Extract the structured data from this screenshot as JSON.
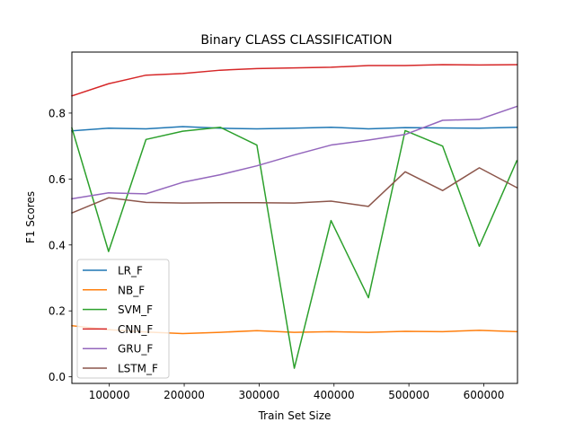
{
  "chart_data": {
    "type": "line",
    "title": "Binary CLASS CLASSIFICATION",
    "xlabel": "Train Set Size",
    "ylabel": "F1 Scores",
    "xlim": [
      50000,
      645000
    ],
    "ylim": [
      -0.02,
      0.985
    ],
    "x_ticks": [
      100000,
      200000,
      300000,
      400000,
      500000,
      600000
    ],
    "y_ticks": [
      0.0,
      0.2,
      0.4,
      0.6,
      0.8
    ],
    "x_tick_labels": [
      "100000",
      "200000",
      "300000",
      "400000",
      "500000",
      "600000"
    ],
    "y_tick_labels": [
      "0.0",
      "0.2",
      "0.4",
      "0.6",
      "0.8"
    ],
    "grid": false,
    "legend_position": "lower-left",
    "x": [
      50000,
      99000,
      149000,
      198000,
      248000,
      297000,
      347000,
      396000,
      446000,
      495000,
      545000,
      594000,
      644000
    ],
    "series": [
      {
        "name": "LR_F",
        "color": "#1f77b4",
        "values": [
          0.746,
          0.754,
          0.752,
          0.759,
          0.754,
          0.752,
          0.754,
          0.757,
          0.752,
          0.756,
          0.755,
          0.754,
          0.757
        ]
      },
      {
        "name": "NB_F",
        "color": "#ff7f0e",
        "values": [
          0.155,
          0.143,
          0.136,
          0.131,
          0.135,
          0.14,
          0.135,
          0.137,
          0.135,
          0.138,
          0.137,
          0.141,
          0.137
        ]
      },
      {
        "name": "SVM_F",
        "color": "#2ca02c",
        "values": [
          0.755,
          0.38,
          0.72,
          0.745,
          0.757,
          0.703,
          0.026,
          0.474,
          0.24,
          0.747,
          0.7,
          0.396,
          0.655
        ]
      },
      {
        "name": "CNN_F",
        "color": "#d62728",
        "values": [
          0.852,
          0.889,
          0.915,
          0.92,
          0.93,
          0.935,
          0.937,
          0.939,
          0.944,
          0.944,
          0.947,
          0.946,
          0.947
        ]
      },
      {
        "name": "GRU_F",
        "color": "#9467bd",
        "values": [
          0.54,
          0.558,
          0.555,
          0.59,
          0.613,
          0.64,
          0.673,
          0.703,
          0.718,
          0.735,
          0.778,
          0.781,
          0.82
        ]
      },
      {
        "name": "LSTM_F",
        "color": "#8c564b",
        "values": [
          0.497,
          0.543,
          0.529,
          0.527,
          0.528,
          0.528,
          0.527,
          0.533,
          0.517,
          0.622,
          0.565,
          0.634,
          0.574
        ]
      }
    ]
  }
}
